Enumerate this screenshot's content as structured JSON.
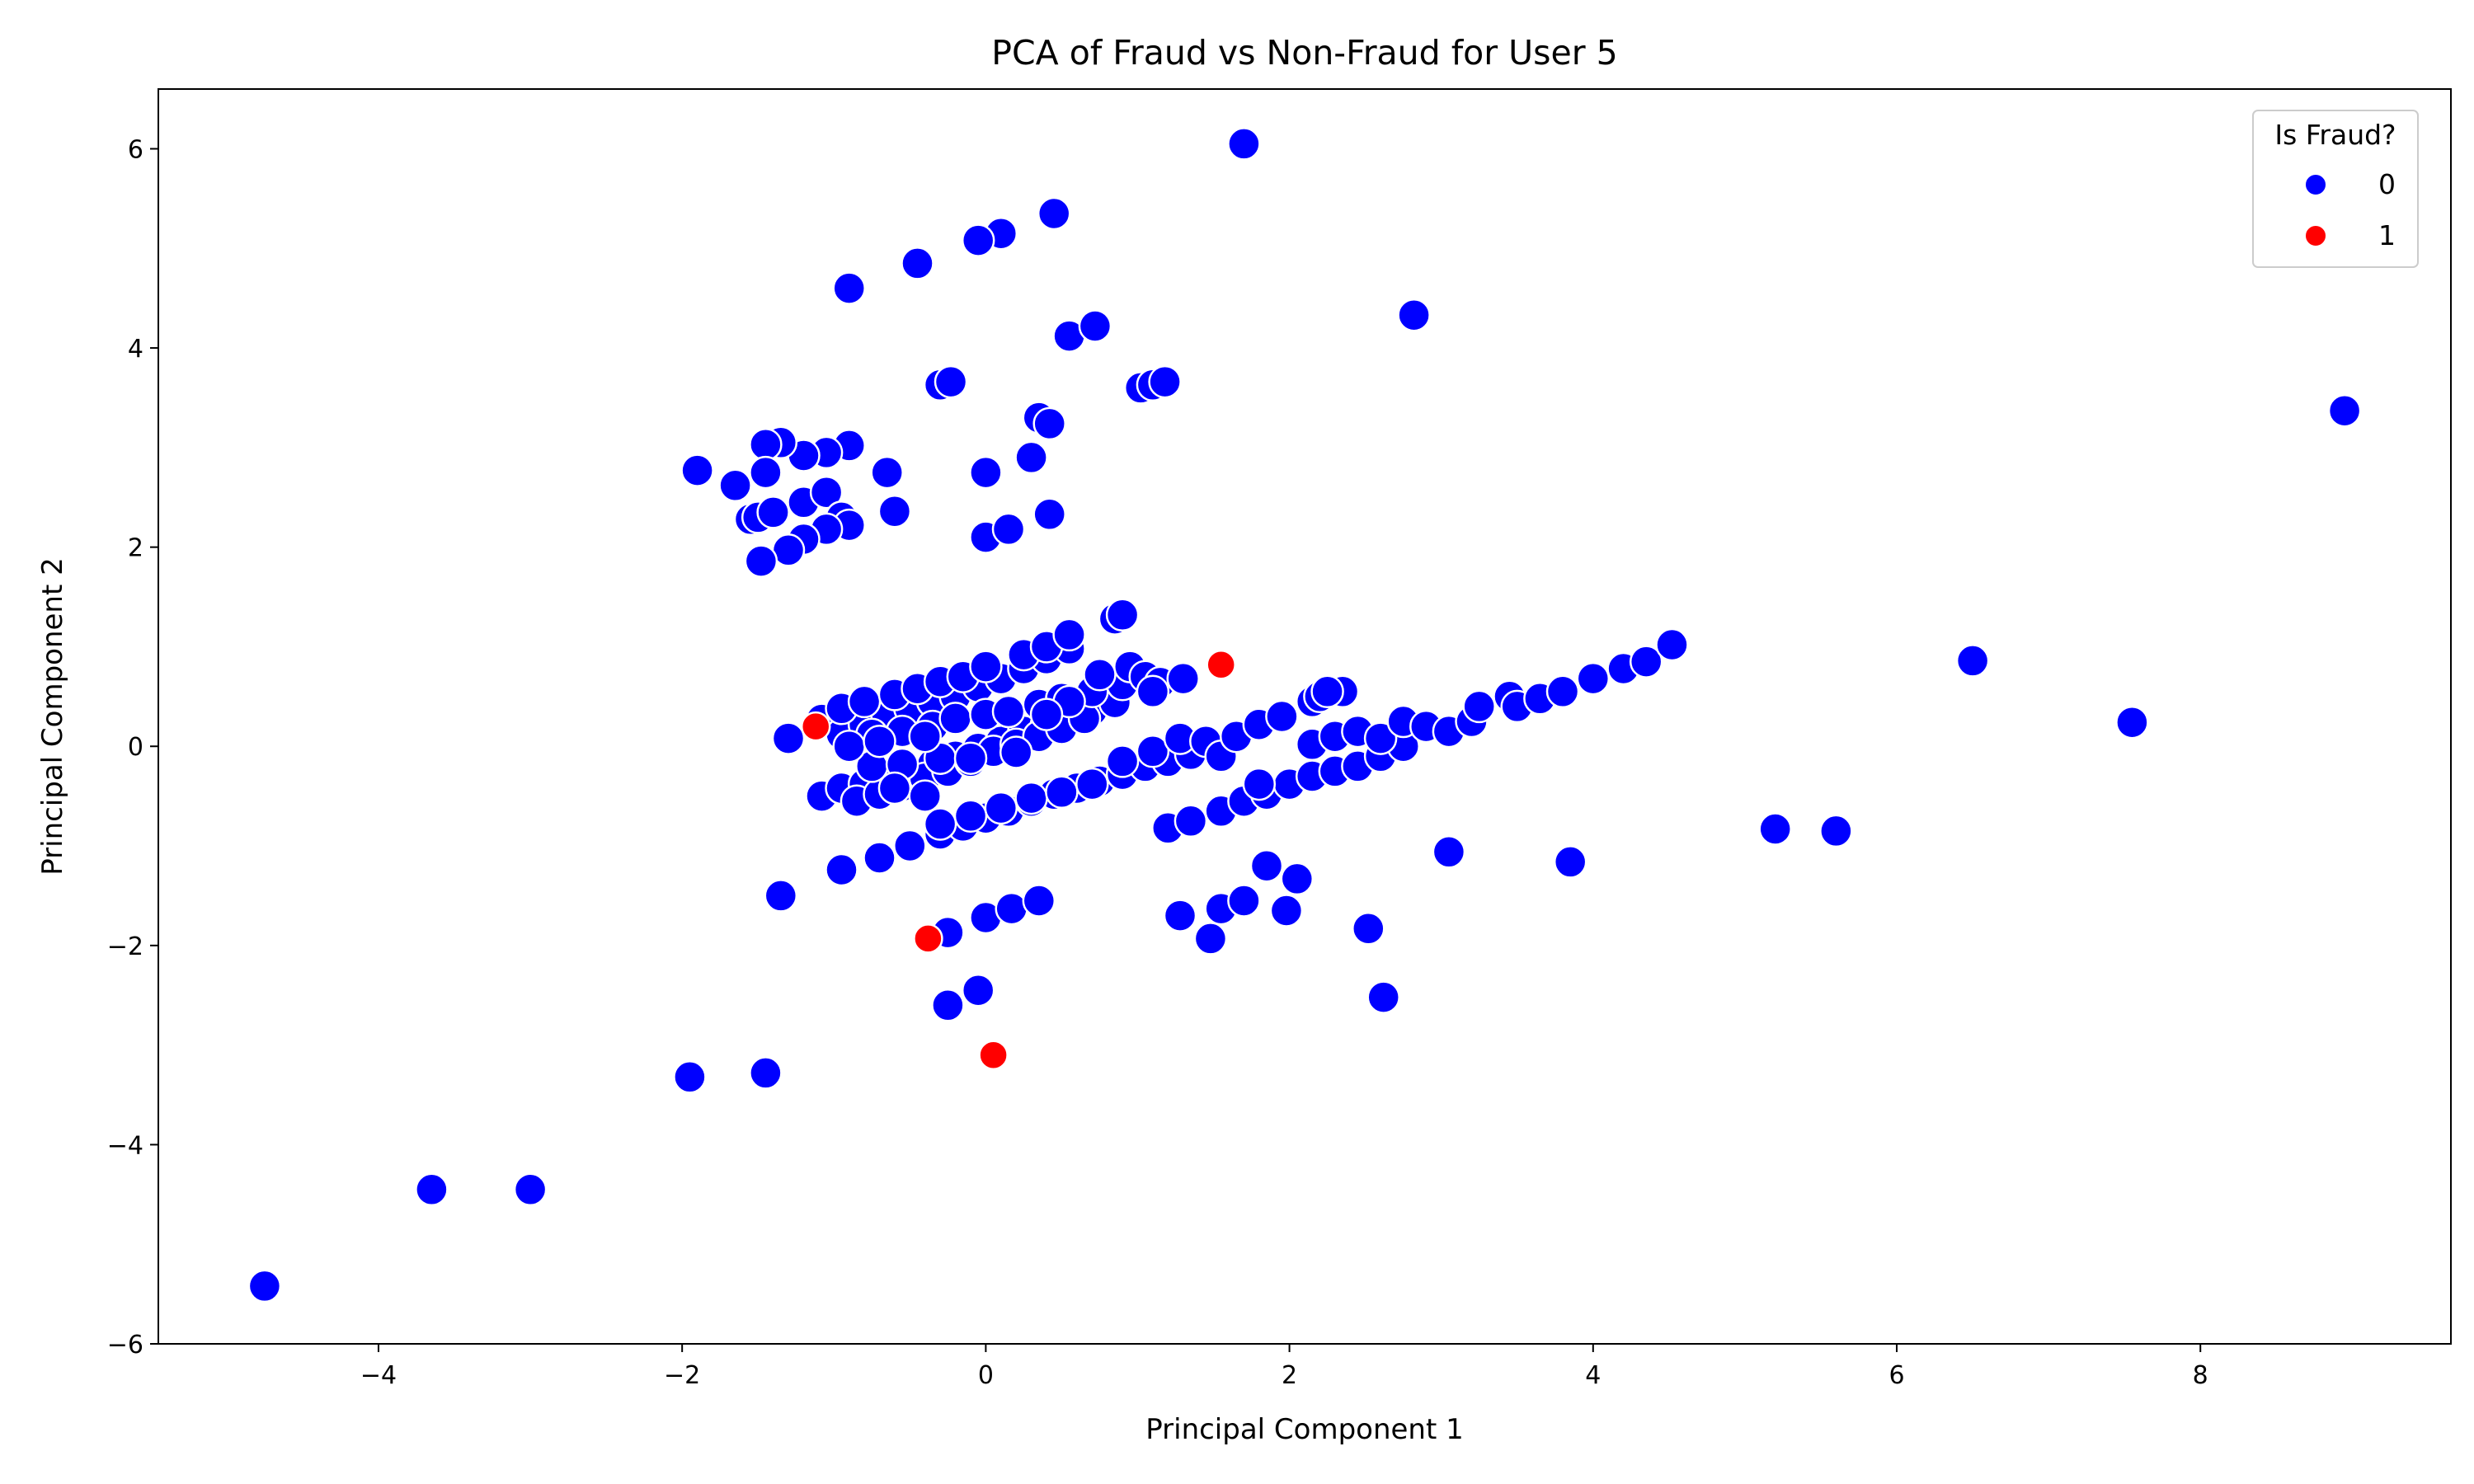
{
  "chart_data": {
    "type": "scatter",
    "title": "PCA of Fraud vs Non-Fraud for User 5",
    "xlabel": "Principal Component 1",
    "ylabel": "Principal Component 2",
    "xlim": [
      -5.45,
      9.65
    ],
    "ylim": [
      -6.0,
      6.6
    ],
    "x_ticks": [
      -4,
      -2,
      0,
      2,
      4,
      6,
      8
    ],
    "y_ticks": [
      -6,
      -4,
      -2,
      0,
      2,
      4,
      6
    ],
    "grid": false,
    "legend": {
      "title": "Is Fraud?",
      "placement": "top-right"
    },
    "series": [
      {
        "name": "0",
        "color": "#0000ff",
        "points": [
          [
            -4.75,
            -5.42
          ],
          [
            -3.65,
            -4.45
          ],
          [
            -3.0,
            -4.45
          ],
          [
            -1.95,
            -3.32
          ],
          [
            -1.45,
            -3.28
          ],
          [
            -0.25,
            -2.6
          ],
          [
            -0.05,
            -2.45
          ],
          [
            -1.35,
            -1.5
          ],
          [
            -0.25,
            -1.87
          ],
          [
            0.0,
            -1.72
          ],
          [
            0.17,
            -1.63
          ],
          [
            0.35,
            -1.55
          ],
          [
            1.28,
            -1.7
          ],
          [
            1.48,
            -1.93
          ],
          [
            1.55,
            -1.63
          ],
          [
            1.7,
            -1.55
          ],
          [
            1.85,
            -1.2
          ],
          [
            1.98,
            -1.65
          ],
          [
            2.05,
            -1.33
          ],
          [
            2.52,
            -1.83
          ],
          [
            2.62,
            -2.52
          ],
          [
            3.05,
            -1.06
          ],
          [
            3.85,
            -1.16
          ],
          [
            5.2,
            -0.83
          ],
          [
            5.6,
            -0.85
          ],
          [
            6.5,
            0.86
          ],
          [
            7.55,
            0.24
          ],
          [
            8.95,
            3.37
          ],
          [
            2.82,
            4.33
          ],
          [
            1.7,
            6.05
          ],
          [
            0.45,
            5.35
          ],
          [
            0.1,
            5.15
          ],
          [
            -0.05,
            5.08
          ],
          [
            -0.45,
            4.85
          ],
          [
            -0.9,
            4.6
          ],
          [
            0.55,
            4.12
          ],
          [
            0.72,
            4.22
          ],
          [
            1.02,
            3.6
          ],
          [
            1.1,
            3.63
          ],
          [
            1.18,
            3.66
          ],
          [
            -0.3,
            3.63
          ],
          [
            -0.23,
            3.66
          ],
          [
            0.35,
            3.3
          ],
          [
            0.42,
            3.24
          ],
          [
            0.3,
            2.9
          ],
          [
            0.0,
            2.75
          ],
          [
            0.42,
            2.33
          ],
          [
            0.0,
            2.1
          ],
          [
            0.15,
            2.18
          ],
          [
            -0.6,
            2.36
          ],
          [
            -0.65,
            2.75
          ],
          [
            -0.9,
            3.02
          ],
          [
            -1.05,
            2.95
          ],
          [
            -1.2,
            2.92
          ],
          [
            -1.35,
            3.05
          ],
          [
            -1.45,
            3.03
          ],
          [
            -1.45,
            2.75
          ],
          [
            -1.65,
            2.62
          ],
          [
            -1.9,
            2.77
          ],
          [
            -1.55,
            2.28
          ],
          [
            -1.5,
            2.3
          ],
          [
            -1.4,
            2.35
          ],
          [
            -1.2,
            2.45
          ],
          [
            -1.05,
            2.55
          ],
          [
            -0.95,
            2.3
          ],
          [
            -0.9,
            2.22
          ],
          [
            -1.05,
            2.18
          ],
          [
            -1.2,
            2.08
          ],
          [
            -1.3,
            1.97
          ],
          [
            -1.48,
            1.86
          ],
          [
            -1.3,
            0.08
          ],
          [
            -1.08,
            0.27
          ],
          [
            -0.95,
            0.12
          ],
          [
            -0.8,
            0.22
          ],
          [
            -0.65,
            0.3
          ],
          [
            -0.5,
            0.38
          ],
          [
            -0.35,
            0.45
          ],
          [
            -0.2,
            0.5
          ],
          [
            -0.05,
            0.6
          ],
          [
            0.1,
            0.68
          ],
          [
            0.25,
            0.78
          ],
          [
            0.4,
            0.88
          ],
          [
            0.55,
            0.98
          ],
          [
            -0.95,
            0.38
          ],
          [
            -0.8,
            0.45
          ],
          [
            -0.6,
            0.52
          ],
          [
            -0.45,
            0.58
          ],
          [
            -0.3,
            0.65
          ],
          [
            -0.15,
            0.7
          ],
          [
            0.0,
            0.8
          ],
          [
            0.25,
            0.92
          ],
          [
            0.4,
            1.0
          ],
          [
            0.55,
            1.12
          ],
          [
            0.85,
            1.28
          ],
          [
            0.9,
            1.32
          ],
          [
            -1.08,
            -0.5
          ],
          [
            -0.95,
            -0.42
          ],
          [
            -0.8,
            -0.38
          ],
          [
            -0.65,
            -0.3
          ],
          [
            -0.5,
            -0.25
          ],
          [
            -0.35,
            -0.18
          ],
          [
            -0.2,
            -0.1
          ],
          [
            -0.05,
            -0.02
          ],
          [
            0.1,
            0.05
          ],
          [
            0.25,
            0.15
          ],
          [
            0.4,
            0.22
          ],
          [
            0.55,
            0.3
          ],
          [
            0.7,
            0.36
          ],
          [
            0.85,
            0.44
          ],
          [
            -0.85,
            -0.55
          ],
          [
            -0.7,
            -0.48
          ],
          [
            -0.55,
            -0.4
          ],
          [
            -0.4,
            -0.32
          ],
          [
            -0.25,
            -0.25
          ],
          [
            -0.1,
            -0.15
          ],
          [
            0.05,
            -0.05
          ],
          [
            0.2,
            0.02
          ],
          [
            0.35,
            0.1
          ],
          [
            0.5,
            0.18
          ],
          [
            0.65,
            0.28
          ],
          [
            -0.75,
            0.12
          ],
          [
            -0.55,
            0.15
          ],
          [
            -0.35,
            0.2
          ],
          [
            -0.2,
            0.28
          ],
          [
            0.0,
            0.32
          ],
          [
            0.15,
            0.35
          ],
          [
            0.35,
            0.42
          ],
          [
            0.5,
            0.48
          ],
          [
            0.7,
            0.55
          ],
          [
            0.9,
            0.62
          ],
          [
            0.95,
            0.8
          ],
          [
            1.05,
            0.7
          ],
          [
            1.15,
            0.64
          ],
          [
            1.3,
            0.68
          ],
          [
            1.1,
            0.55
          ],
          [
            -0.75,
            -0.2
          ],
          [
            -0.55,
            -0.18
          ],
          [
            -0.3,
            -0.12
          ],
          [
            -0.1,
            -0.12
          ],
          [
            0.2,
            -0.06
          ],
          [
            -0.6,
            -0.42
          ],
          [
            -0.4,
            -0.5
          ],
          [
            -0.9,
            0.0
          ],
          [
            -0.7,
            0.05
          ],
          [
            -0.4,
            0.1
          ],
          [
            -0.95,
            -1.24
          ],
          [
            -0.7,
            -1.12
          ],
          [
            -0.5,
            -1.0
          ],
          [
            -0.3,
            -0.88
          ],
          [
            -0.15,
            -0.8
          ],
          [
            0.0,
            -0.72
          ],
          [
            0.15,
            -0.65
          ],
          [
            0.3,
            -0.55
          ],
          [
            0.45,
            -0.48
          ],
          [
            0.6,
            -0.42
          ],
          [
            0.75,
            -0.35
          ],
          [
            0.9,
            -0.28
          ],
          [
            1.05,
            -0.2
          ],
          [
            1.2,
            -0.15
          ],
          [
            1.35,
            -0.08
          ],
          [
            -0.3,
            -0.78
          ],
          [
            -0.1,
            -0.7
          ],
          [
            0.1,
            -0.62
          ],
          [
            0.3,
            -0.52
          ],
          [
            0.5,
            -0.46
          ],
          [
            0.7,
            -0.38
          ],
          [
            0.9,
            -0.15
          ],
          [
            1.1,
            -0.05
          ],
          [
            1.28,
            0.08
          ],
          [
            1.45,
            0.05
          ],
          [
            1.2,
            -0.82
          ],
          [
            1.35,
            -0.75
          ],
          [
            1.55,
            -0.65
          ],
          [
            1.7,
            -0.55
          ],
          [
            1.85,
            -0.48
          ],
          [
            2.0,
            -0.38
          ],
          [
            2.15,
            -0.3
          ],
          [
            2.3,
            -0.25
          ],
          [
            2.45,
            -0.2
          ],
          [
            2.6,
            -0.1
          ],
          [
            2.75,
            0.0
          ],
          [
            1.8,
            -0.38
          ],
          [
            1.55,
            -0.1
          ],
          [
            1.65,
            0.1
          ],
          [
            1.8,
            0.22
          ],
          [
            1.95,
            0.3
          ],
          [
            2.15,
            0.45
          ],
          [
            2.2,
            0.5
          ],
          [
            2.35,
            0.55
          ],
          [
            2.25,
            0.55
          ],
          [
            2.15,
            0.02
          ],
          [
            2.3,
            0.1
          ],
          [
            2.45,
            0.15
          ],
          [
            2.6,
            0.08
          ],
          [
            2.75,
            0.25
          ],
          [
            2.9,
            0.2
          ],
          [
            3.05,
            0.15
          ],
          [
            3.2,
            0.25
          ],
          [
            3.25,
            0.4
          ],
          [
            3.45,
            0.5
          ],
          [
            3.5,
            0.4
          ],
          [
            3.65,
            0.48
          ],
          [
            3.8,
            0.55
          ],
          [
            4.0,
            0.68
          ],
          [
            4.2,
            0.78
          ],
          [
            4.35,
            0.85
          ],
          [
            4.52,
            1.02
          ],
          [
            0.75,
            0.72
          ],
          [
            0.55,
            0.45
          ],
          [
            0.4,
            0.32
          ]
        ]
      },
      {
        "name": "1",
        "color": "#ff0000",
        "points": [
          [
            1.55,
            0.82
          ],
          [
            -1.12,
            0.2
          ],
          [
            -0.38,
            -1.93
          ],
          [
            0.05,
            -3.1
          ]
        ]
      }
    ]
  }
}
